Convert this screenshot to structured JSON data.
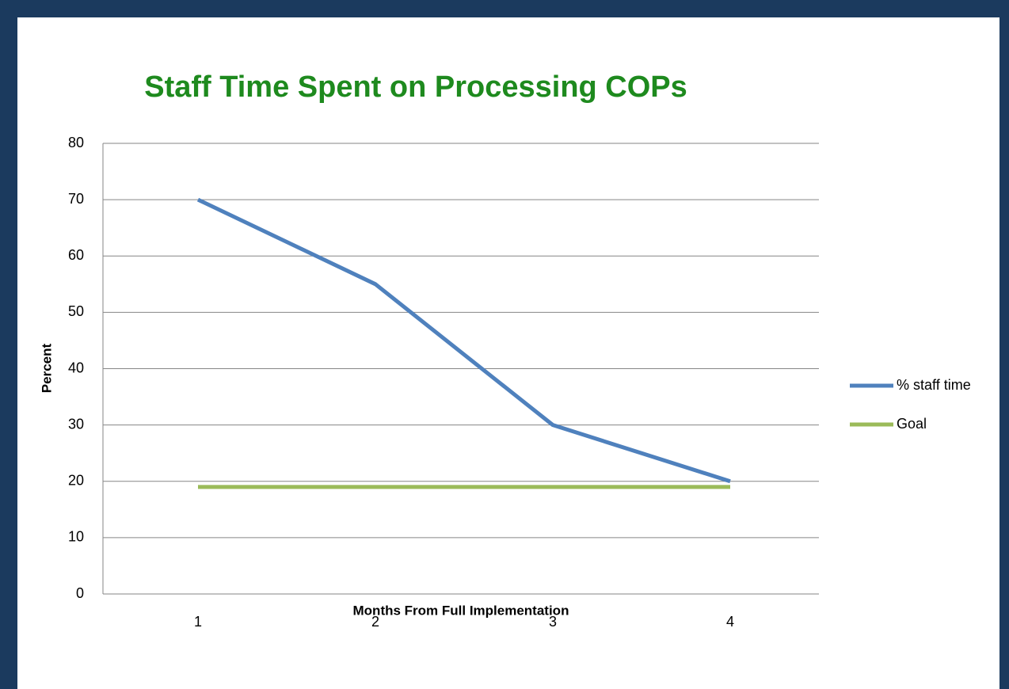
{
  "chart_data": {
    "type": "line",
    "title": "Staff Time Spent on Processing COPs",
    "x_label": "Months From Full Implementation",
    "y_label": "Percent",
    "categories": [
      "1",
      "2",
      "3",
      "4"
    ],
    "series": [
      {
        "name": "% staff time",
        "color": "#4f81bd",
        "values": [
          70,
          55,
          30,
          20
        ]
      },
      {
        "name": "Goal",
        "color": "#9bbb59",
        "values": [
          19,
          19,
          19,
          19
        ]
      }
    ],
    "ylim": [
      0,
      80
    ],
    "yticks": [
      0,
      10,
      20,
      30,
      40,
      50,
      60,
      70,
      80
    ],
    "grid": true,
    "legend": "right"
  }
}
